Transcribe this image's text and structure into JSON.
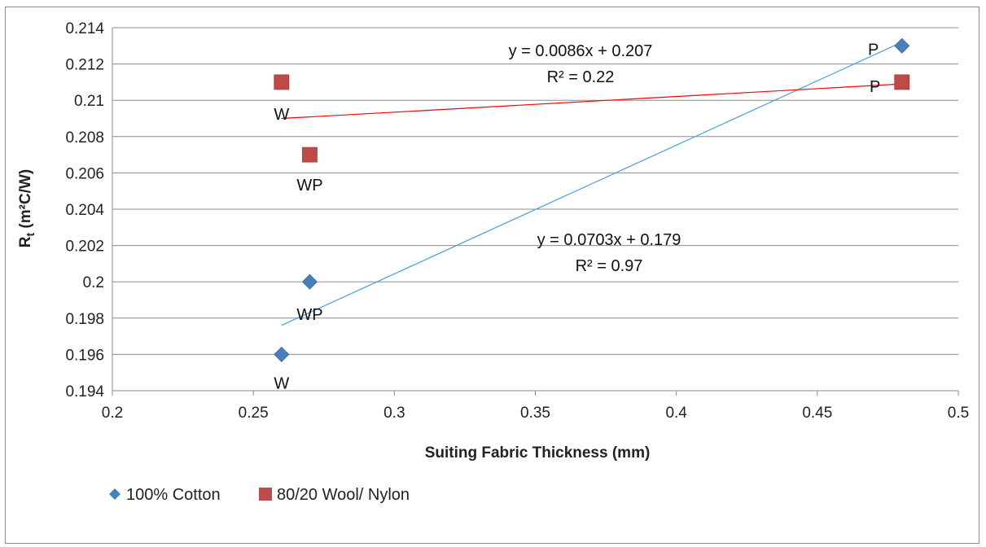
{
  "chart_data": {
    "type": "scatter",
    "title": "",
    "xlabel": "Suiting Fabric Thickness (mm)",
    "ylabel_main": "R",
    "ylabel_sub": "t",
    "ylabel_rest": " (m²C/W)",
    "xlim": [
      0.2,
      0.5
    ],
    "ylim": [
      0.194,
      0.214
    ],
    "x_ticks": [
      "0.2",
      "0.25",
      "0.3",
      "0.35",
      "0.4",
      "0.45",
      "0.5"
    ],
    "y_ticks": [
      "0.194",
      "0.196",
      "0.198",
      "0.2",
      "0.202",
      "0.204",
      "0.206",
      "0.208",
      "0.21",
      "0.212",
      "0.214"
    ],
    "grid": "horizontal",
    "legend_position": "bottom-left",
    "series": [
      {
        "name": "100% Cotton",
        "marker": "diamond",
        "color": "#4a7ebb",
        "trendline_color": "#4a9fd8",
        "points": [
          {
            "x": 0.26,
            "y": 0.196,
            "label": "W"
          },
          {
            "x": 0.27,
            "y": 0.2,
            "label": "WP"
          },
          {
            "x": 0.48,
            "y": 0.213,
            "label": "P"
          }
        ],
        "trendline": {
          "x_start": 0.26,
          "y_start": 0.1976,
          "x_end": 0.48,
          "y_end": 0.2132
        },
        "equation": "y = 0.0703x + 0.179",
        "r_squared": "R² = 0.97"
      },
      {
        "name": "80/20 Wool/ Nylon",
        "marker": "square",
        "color": "#be4b48",
        "trendline_color": "#ff0000",
        "points": [
          {
            "x": 0.26,
            "y": 0.211,
            "label": "W"
          },
          {
            "x": 0.27,
            "y": 0.207,
            "label": "WP"
          },
          {
            "x": 0.48,
            "y": 0.211,
            "label": "P"
          }
        ],
        "trendline": {
          "x_start": 0.26,
          "y_start": 0.209,
          "x_end": 0.48,
          "y_end": 0.2109
        },
        "equation": "y = 0.0086x + 0.207",
        "r_squared": "R² = 0.22"
      }
    ]
  }
}
